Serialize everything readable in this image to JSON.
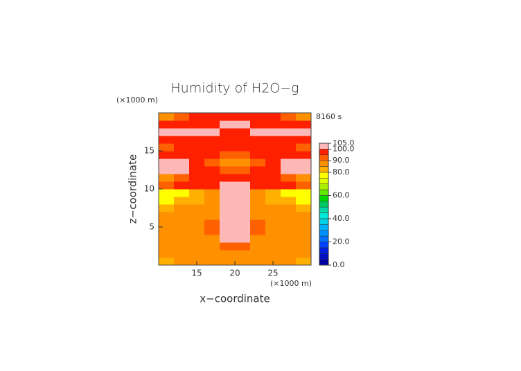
{
  "chart_data": {
    "type": "contour",
    "title": "Humidity of H2O−g",
    "time_label": "8160 s",
    "x_label": "x−coordinate",
    "y_label": "z−coordinate",
    "x_unit": "(×1000 m)",
    "y_unit": "(×1000 m)",
    "xlim": [
      10,
      30
    ],
    "ylim": [
      0,
      20
    ],
    "xticks": [
      15,
      20,
      25
    ],
    "yticks": [
      5,
      10,
      15
    ],
    "x": [
      11,
      13,
      15,
      17,
      19,
      21,
      23,
      25,
      27,
      29
    ],
    "y": [
      0.5,
      1.5,
      2.5,
      3.5,
      4.5,
      5.5,
      6.5,
      7.5,
      8.5,
      9.5,
      10.5,
      11.5,
      12.5,
      13.5,
      14.5,
      15.5,
      16.5,
      17.5,
      18.5,
      19.5
    ],
    "z": [
      [
        83,
        85,
        86,
        86,
        87,
        87,
        86,
        86,
        85,
        83
      ],
      [
        85,
        86,
        87,
        87,
        88,
        88,
        87,
        87,
        86,
        85
      ],
      [
        86,
        87,
        88,
        88,
        93,
        93,
        88,
        88,
        87,
        86
      ],
      [
        87,
        87,
        88,
        89,
        102,
        102,
        89,
        88,
        87,
        87
      ],
      [
        86,
        87,
        88,
        90,
        102,
        102,
        90,
        88,
        87,
        86
      ],
      [
        87,
        88,
        88,
        92,
        102,
        102,
        92,
        88,
        88,
        87
      ],
      [
        85,
        86,
        87,
        88,
        102,
        102,
        88,
        87,
        86,
        85
      ],
      [
        84,
        85,
        86,
        87,
        102,
        102,
        87,
        86,
        85,
        84
      ],
      [
        78,
        80,
        84,
        87,
        102,
        102,
        87,
        84,
        80,
        78
      ],
      [
        76,
        77,
        82,
        88,
        102,
        102,
        88,
        82,
        77,
        76
      ],
      [
        94,
        95,
        96,
        97,
        102,
        102,
        97,
        96,
        95,
        94
      ],
      [
        88,
        92,
        96,
        96,
        97,
        97,
        96,
        96,
        92,
        88
      ],
      [
        102,
        102,
        96,
        95,
        94,
        94,
        95,
        96,
        102,
        102
      ],
      [
        102,
        102,
        96,
        93,
        88,
        88,
        93,
        96,
        102,
        102
      ],
      [
        96,
        96,
        96,
        95,
        92,
        92,
        95,
        96,
        96,
        96
      ],
      [
        92,
        95,
        96,
        96,
        96,
        96,
        96,
        96,
        95,
        92
      ],
      [
        96,
        96,
        97,
        97,
        97,
        97,
        97,
        97,
        96,
        96
      ],
      [
        102,
        102,
        102,
        102,
        97,
        97,
        102,
        102,
        102,
        102
      ],
      [
        96,
        97,
        97,
        96,
        102,
        102,
        96,
        97,
        97,
        96
      ],
      [
        86,
        92,
        96,
        96,
        96,
        96,
        96,
        96,
        92,
        86
      ]
    ],
    "colorbar": {
      "levels": [
        0,
        5,
        10,
        15,
        20,
        25,
        30,
        35,
        40,
        45,
        50,
        55,
        60,
        65,
        70,
        75,
        80,
        85,
        90,
        95,
        100,
        105
      ],
      "colors": [
        "#0000a0",
        "#0010c0",
        "#0020e0",
        "#0040ff",
        "#0070ff",
        "#0090ff",
        "#00b0ff",
        "#00d0e8",
        "#00e8d8",
        "#00d8a8",
        "#00c860",
        "#00d800",
        "#60e800",
        "#a8f000",
        "#e0ff00",
        "#ffff00",
        "#ffb000",
        "#ff9000",
        "#ff6000",
        "#ff2000",
        "#ffb8b8"
      ],
      "ticks": [
        {
          "value": 0,
          "label": "0.0"
        },
        {
          "value": 20,
          "label": "20.0"
        },
        {
          "value": 40,
          "label": "40.0"
        },
        {
          "value": 60,
          "label": "60.0"
        },
        {
          "value": 80,
          "label": "80.0"
        },
        {
          "value": 90,
          "label": "90.0"
        },
        {
          "value": 100,
          "label": "100.0"
        },
        {
          "value": 105,
          "label": "105.0"
        }
      ]
    }
  }
}
